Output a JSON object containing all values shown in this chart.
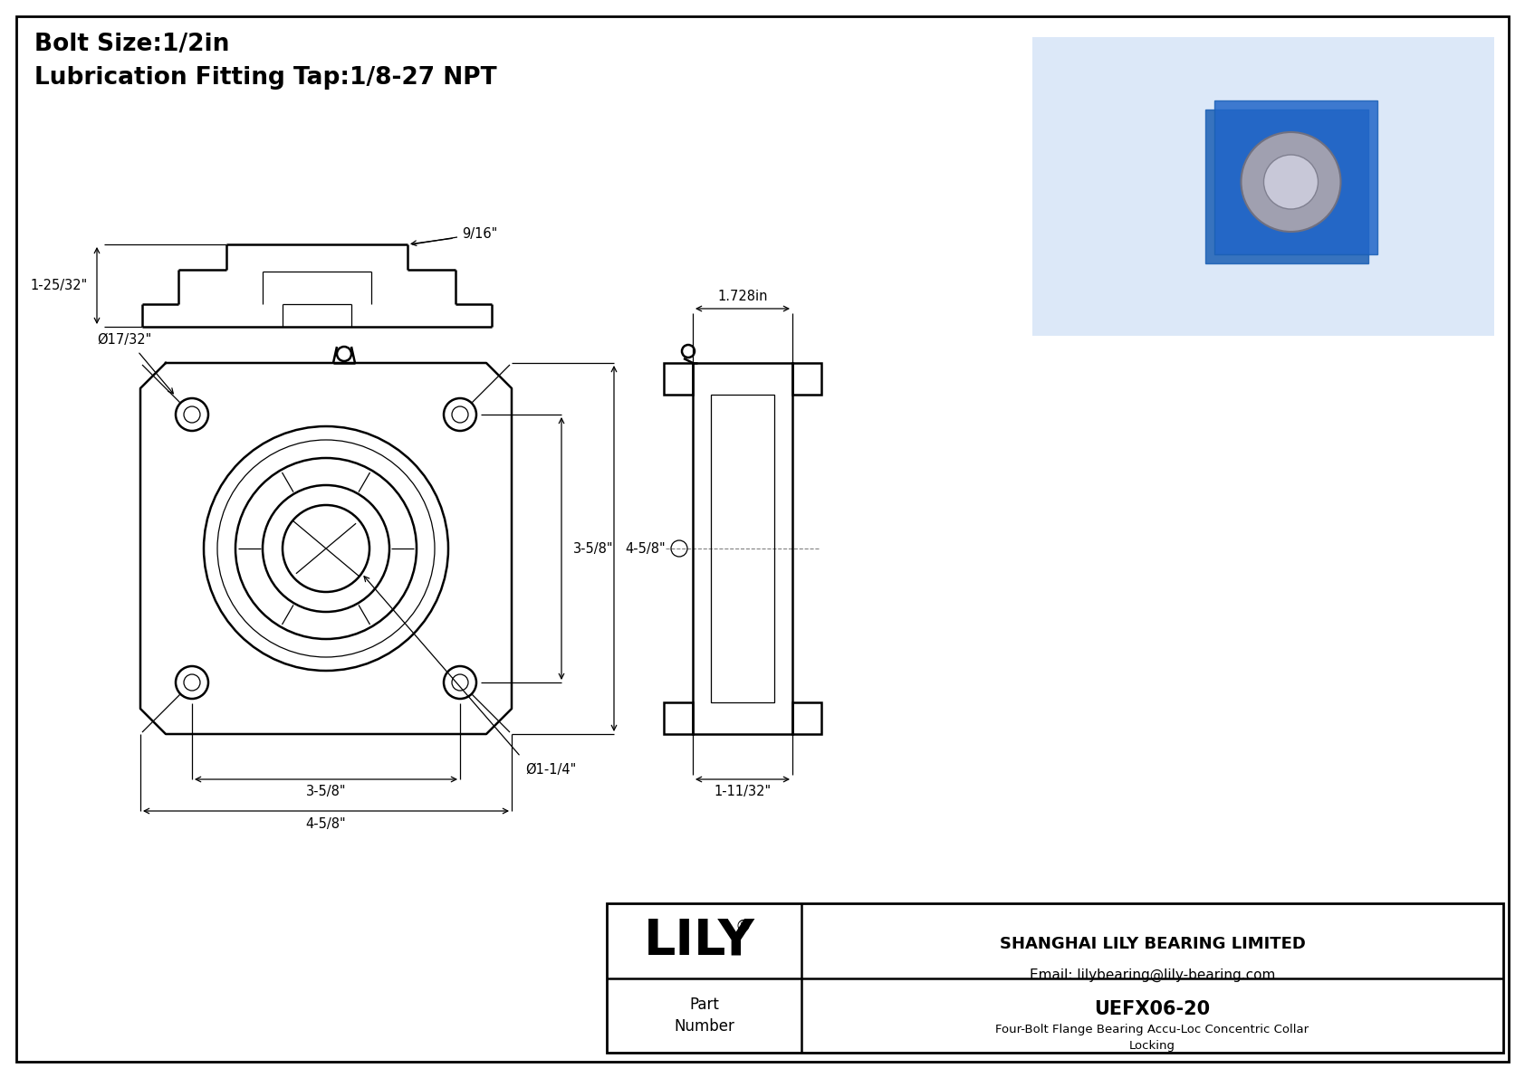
{
  "title_line1": "Bolt Size:1/2in",
  "title_line2": "Lubrication Fitting Tap:1/8-27 NPT",
  "bg_color": "#ffffff",
  "line_color": "#000000",
  "company_name": "SHANGHAI LILY BEARING LIMITED",
  "company_email": "Email: lilybearing@lily-bearing.com",
  "brand": "LILY",
  "brand_reg": "®",
  "part_label": "Part\nNumber",
  "part_number": "UEFX06-20",
  "part_desc": "Four-Bolt Flange Bearing Accu-Loc Concentric Collar\nLocking",
  "dim_bolt_hole": "Ø17/32\"",
  "dim_shaft": "Ø1-1/4\"",
  "dim_3_5_8_horiz": "3-5/8\"",
  "dim_4_5_8_horiz": "4-5/8\"",
  "dim_3_5_8_vert": "3-5/8\"",
  "dim_4_5_8_vert": "4-5/8\"",
  "dim_width_side": "1.728in",
  "dim_depth_side": "1-11/32\"",
  "dim_height_bv": "1-25/32\"",
  "dim_top_bv": "9/16\""
}
